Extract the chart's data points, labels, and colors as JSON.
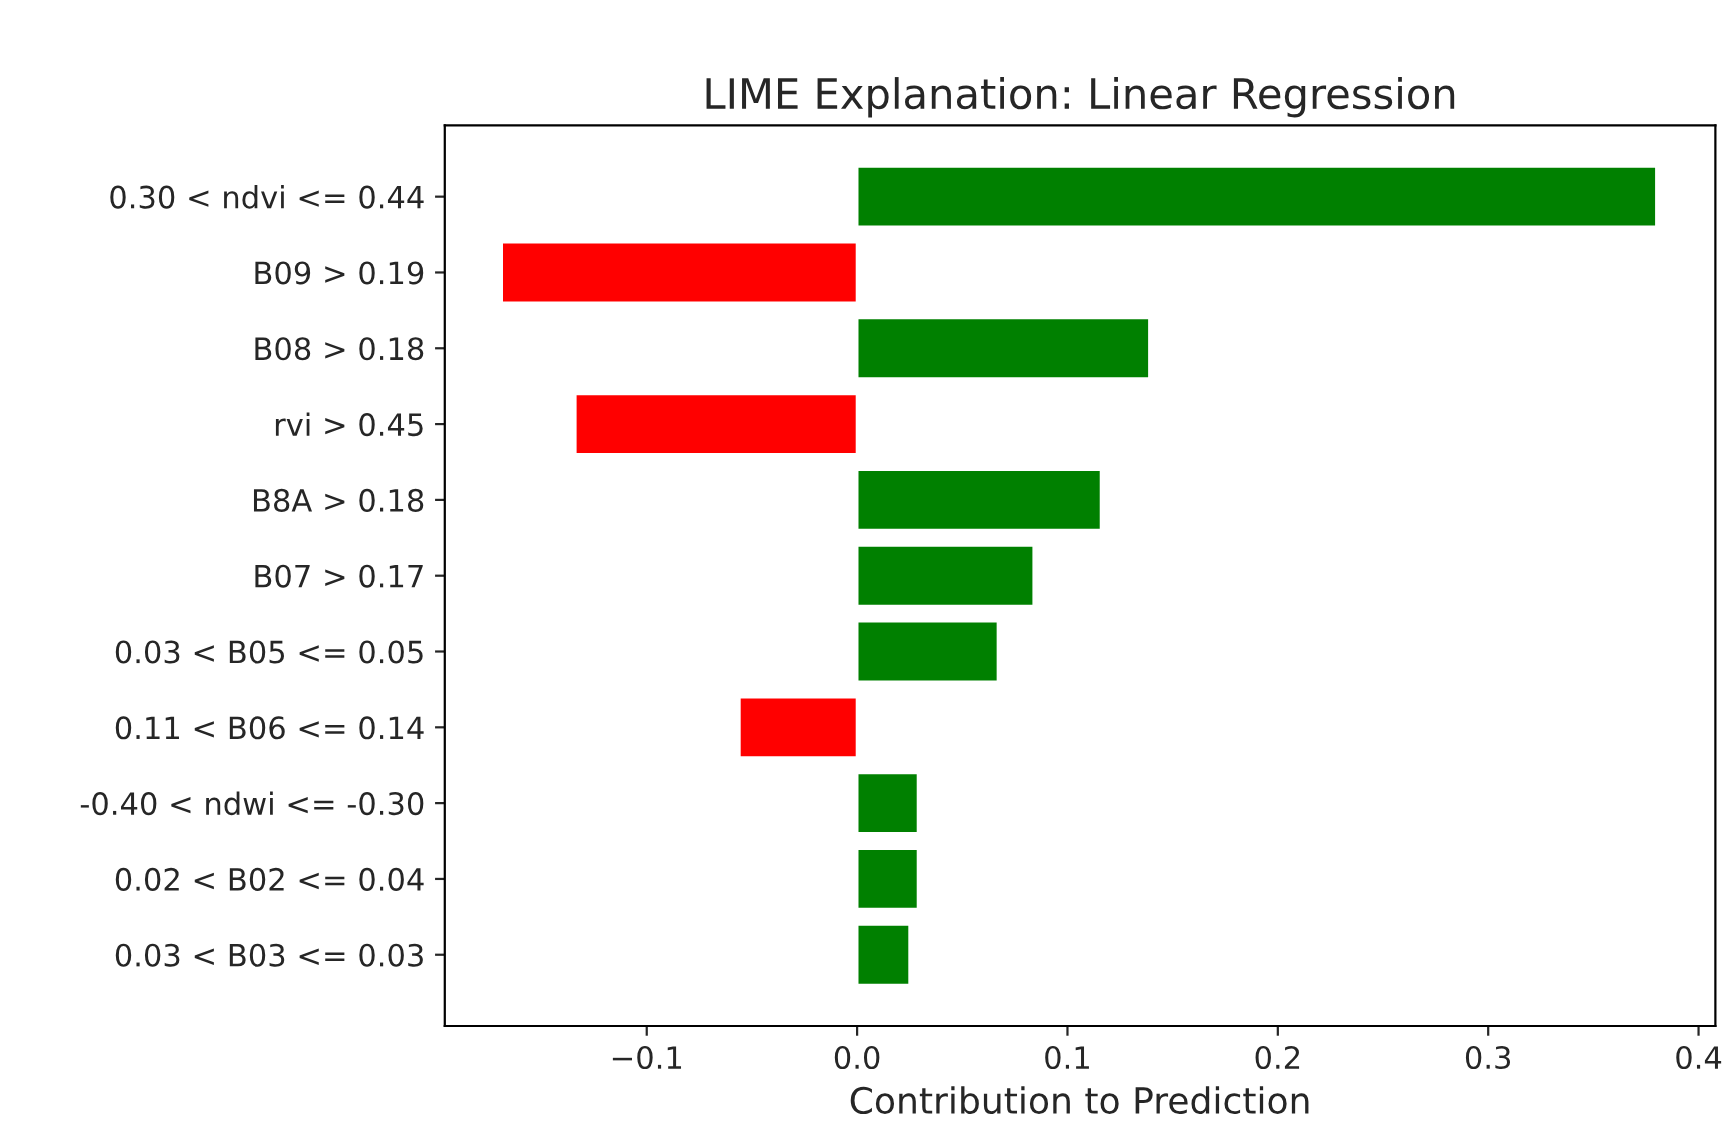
{
  "chart_data": {
    "type": "bar",
    "orientation": "horizontal",
    "title": "LIME Explanation: Linear Regression",
    "xlabel": "Contribution to Prediction",
    "categories": [
      "0.30 < ndvi <= 0.44",
      "B09 > 0.19",
      "B08 > 0.18",
      "rvi > 0.45",
      "B8A > 0.18",
      "B07 > 0.17",
      "0.03 < B05 <= 0.05",
      "0.11 < B06 <= 0.14",
      "-0.40 < ndwi <= -0.30",
      "0.02 < B02 <= 0.04",
      "0.03 < B03 <= 0.03"
    ],
    "values": [
      0.38,
      -0.169,
      0.139,
      -0.134,
      0.116,
      0.084,
      0.067,
      -0.056,
      0.029,
      0.029,
      0.025
    ],
    "colors": [
      "#008000",
      "#ff0000",
      "#008000",
      "#ff0000",
      "#008000",
      "#008000",
      "#008000",
      "#ff0000",
      "#008000",
      "#008000",
      "#008000"
    ],
    "xlim": [
      -0.196,
      0.408
    ],
    "xticks": [
      {
        "value": -0.1,
        "label": "−0.1"
      },
      {
        "value": 0.0,
        "label": "0.0"
      },
      {
        "value": 0.1,
        "label": "0.1"
      },
      {
        "value": 0.2,
        "label": "0.2"
      },
      {
        "value": 0.3,
        "label": "0.3"
      },
      {
        "value": 0.4,
        "label": "0.4"
      }
    ]
  }
}
